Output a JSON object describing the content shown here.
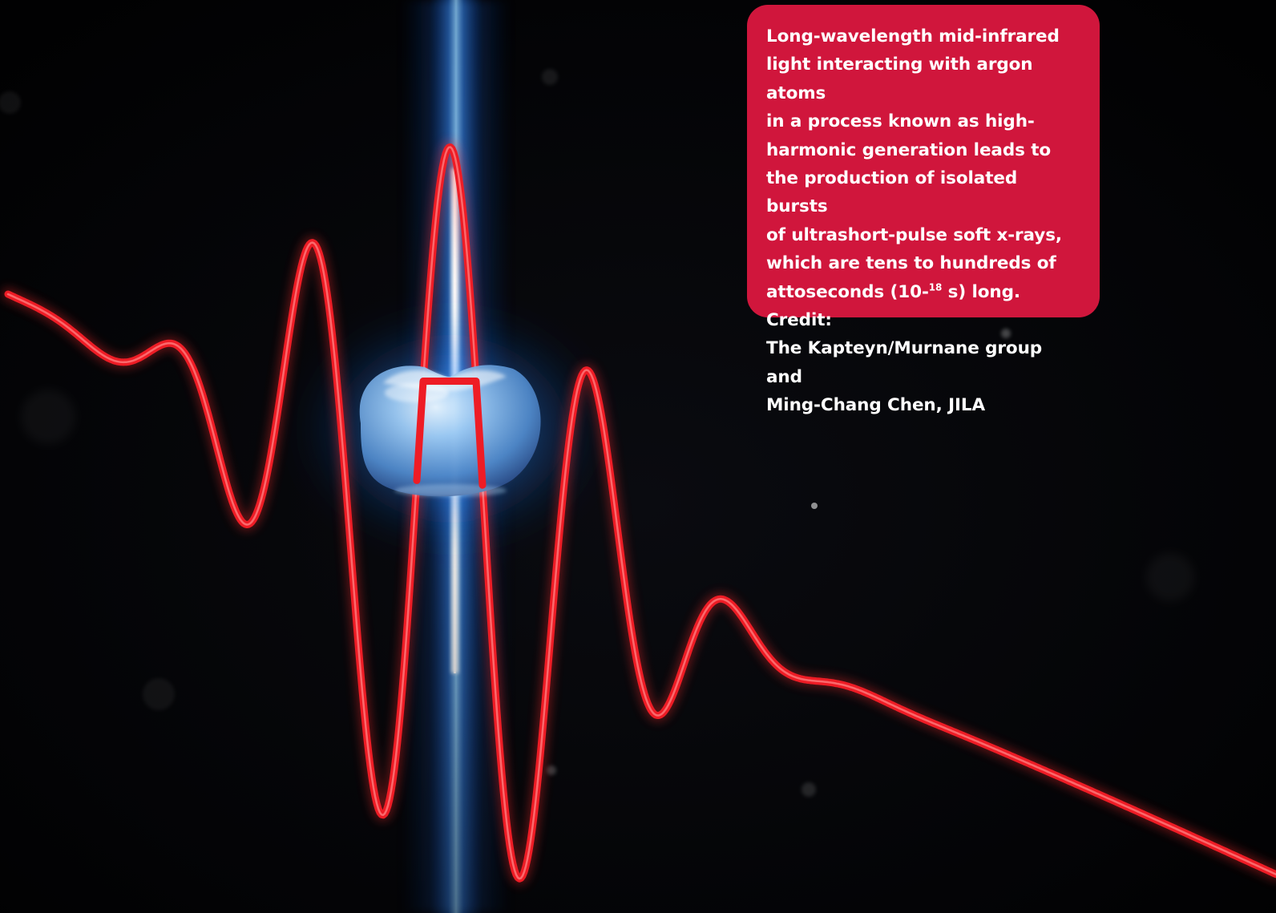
{
  "caption": {
    "text_before_exponent": " Long-wavelength mid-infrared\nlight interacting with argon atoms\nin a process known as high-\nharmonic generation leads to\nthe production of isolated bursts\nof ultrashort-pulse soft x-rays,\nwhich are tens to hundreds of\nattoseconds (10-",
    "exponent": "18",
    "text_after_exponent": " s) long. Credit:\nThe Kapteyn/Murnane group and\nMing-Chang Chen, JILA",
    "background_color": "#d0163c",
    "text_color": "#ffffff"
  },
  "illustration": {
    "background_color": "#020203",
    "pulse_color": "#ee1c25",
    "beam_color": "#3d9cff",
    "atom_color": "#7fb6ee",
    "elements": [
      "laser-pulse-wave",
      "x-ray-beam",
      "argon-atom"
    ]
  }
}
